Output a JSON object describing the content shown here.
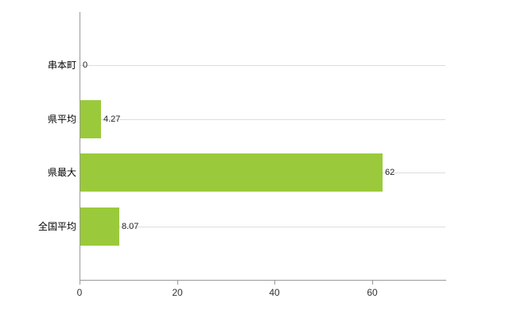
{
  "chart_data": {
    "type": "bar",
    "orientation": "horizontal",
    "title": "",
    "xlabel": "",
    "ylabel": "",
    "categories": [
      "串本町",
      "県平均",
      "県最大",
      "全国平均"
    ],
    "values": [
      0,
      4.27,
      62,
      8.07
    ],
    "value_labels": [
      "0",
      "4.27",
      "62",
      "8.07"
    ],
    "xlim": [
      0,
      75
    ],
    "xticks": [
      0,
      20,
      40,
      60
    ],
    "grid": "horizontal-category-gridlines",
    "legend": "none"
  },
  "colors": {
    "bar": "#9aca3b",
    "axis": "#999999",
    "gridline": "#dddddd",
    "category_text": "#000000",
    "value_text": "#222222",
    "tick_text": "#333333",
    "background": "#ffffff"
  }
}
